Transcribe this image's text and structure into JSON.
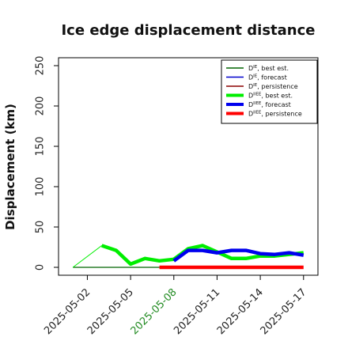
{
  "chart_data": {
    "type": "line",
    "title": "Ice edge displacement distance",
    "ylabel": "Displacement (km)",
    "xlabel": "",
    "ylim": [
      0,
      260
    ],
    "y_ticks": [
      0,
      50,
      100,
      150,
      200,
      250
    ],
    "xlim": [
      "2025-04-30",
      "2025-05-18"
    ],
    "x_ticks": [
      "2025-05-02",
      "2025-05-05",
      "2025-05-08",
      "2025-05-11",
      "2025-05-14",
      "2025-05-17"
    ],
    "highlight_tick": "2025-05-08",
    "highlight_color": "#228b22",
    "grid": false,
    "legend_position": "top-right",
    "series": [
      {
        "name": "D^IE, best est.",
        "color": "#006400",
        "style": "thin",
        "x": [
          "2025-05-01",
          "2025-05-02",
          "2025-05-03",
          "2025-05-04",
          "2025-05-05",
          "2025-05-06",
          "2025-05-07",
          "2025-05-08"
        ],
        "y": [
          0,
          0,
          0,
          0,
          0,
          0,
          0,
          0
        ]
      },
      {
        "name": "D^IE, forecast",
        "color": "#0000cd",
        "style": "thin",
        "x": [],
        "y": []
      },
      {
        "name": "D^IE, persistence",
        "color": "#8b0000",
        "style": "thin",
        "x": [],
        "y": []
      },
      {
        "name": "D^IIEE, best est.",
        "color": "#00ee00",
        "style": "thick",
        "x": [
          "2025-05-03",
          "2025-05-04",
          "2025-05-05",
          "2025-05-06",
          "2025-05-07",
          "2025-05-08",
          "2025-05-09",
          "2025-05-10",
          "2025-05-11",
          "2025-05-12",
          "2025-05-13",
          "2025-05-14",
          "2025-05-15",
          "2025-05-16",
          "2025-05-17"
        ],
        "y": [
          27,
          21,
          4,
          11,
          8,
          10,
          23,
          27,
          19,
          11,
          11,
          14,
          14,
          16,
          18
        ],
        "connector_from": {
          "x": "2025-05-01",
          "y": 0
        }
      },
      {
        "name": "D^IIEE, forecast",
        "color": "#0000ee",
        "style": "thick",
        "x": [
          "2025-05-08",
          "2025-05-09",
          "2025-05-10",
          "2025-05-11",
          "2025-05-12",
          "2025-05-13",
          "2025-05-14",
          "2025-05-15",
          "2025-05-16",
          "2025-05-17"
        ],
        "y": [
          8,
          21,
          21,
          18,
          21,
          21,
          17,
          16,
          18,
          15
        ]
      },
      {
        "name": "D^IIEE, persistence",
        "color": "#ff0000",
        "style": "thick",
        "x": [
          "2025-05-07",
          "2025-05-17"
        ],
        "y": [
          0,
          0
        ]
      }
    ],
    "legend": [
      {
        "base": "D",
        "sup": "IE",
        "suffix": ", best est.",
        "color": "#006400",
        "style": "thin"
      },
      {
        "base": "D",
        "sup": "IE",
        "suffix": ", forecast",
        "color": "#0000cd",
        "style": "thin"
      },
      {
        "base": "D",
        "sup": "IE",
        "suffix": ", persistence",
        "color": "#8b0000",
        "style": "thin"
      },
      {
        "base": "D",
        "sup": "IIEE",
        "suffix": ", best est.",
        "color": "#00ee00",
        "style": "thick"
      },
      {
        "base": "D",
        "sup": "IIEE",
        "suffix": ", forecast",
        "color": "#0000ee",
        "style": "thick"
      },
      {
        "base": "D",
        "sup": "IIEE",
        "suffix": ", persistence",
        "color": "#ff0000",
        "style": "thick"
      }
    ]
  }
}
